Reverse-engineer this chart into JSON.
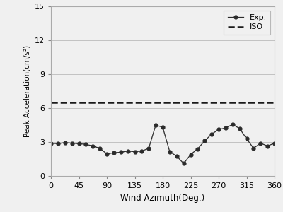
{
  "x": [
    0,
    11.25,
    22.5,
    33.75,
    45,
    56.25,
    67.5,
    78.75,
    90,
    101.25,
    112.5,
    123.75,
    135,
    146.25,
    157.5,
    168.75,
    180,
    191.25,
    202.5,
    213.75,
    225,
    236.25,
    247.5,
    258.75,
    270,
    281.25,
    292.5,
    303.75,
    315,
    326.25,
    337.5,
    348.75,
    360
  ],
  "y": [
    2.9,
    2.85,
    2.95,
    2.9,
    2.85,
    2.8,
    2.65,
    2.45,
    1.95,
    2.05,
    2.1,
    2.2,
    2.15,
    2.2,
    2.45,
    4.5,
    4.3,
    2.15,
    1.75,
    1.1,
    1.9,
    2.4,
    3.1,
    3.7,
    4.1,
    4.25,
    4.55,
    4.2,
    3.3,
    2.45,
    2.9,
    2.65,
    2.9
  ],
  "iso_value": 6.5,
  "xlabel": "Wind Azimuth(Deg.)",
  "ylabel": "Peak Acceleration(cm/s²)",
  "xlim": [
    0,
    360
  ],
  "ylim": [
    0,
    15
  ],
  "xticks": [
    0,
    45,
    90,
    135,
    180,
    225,
    270,
    315,
    360
  ],
  "yticks": [
    0,
    3,
    6,
    9,
    12,
    15
  ],
  "legend_exp": "Exp.",
  "legend_iso": "ISO",
  "line_color": "#2b2b2b",
  "marker": "o",
  "marker_size": 3.5,
  "iso_color": "#1a1a1a",
  "background_color": "#f0f0f0",
  "grid_color": "#bbbbbb",
  "fig_bg": "#f0f0f0"
}
